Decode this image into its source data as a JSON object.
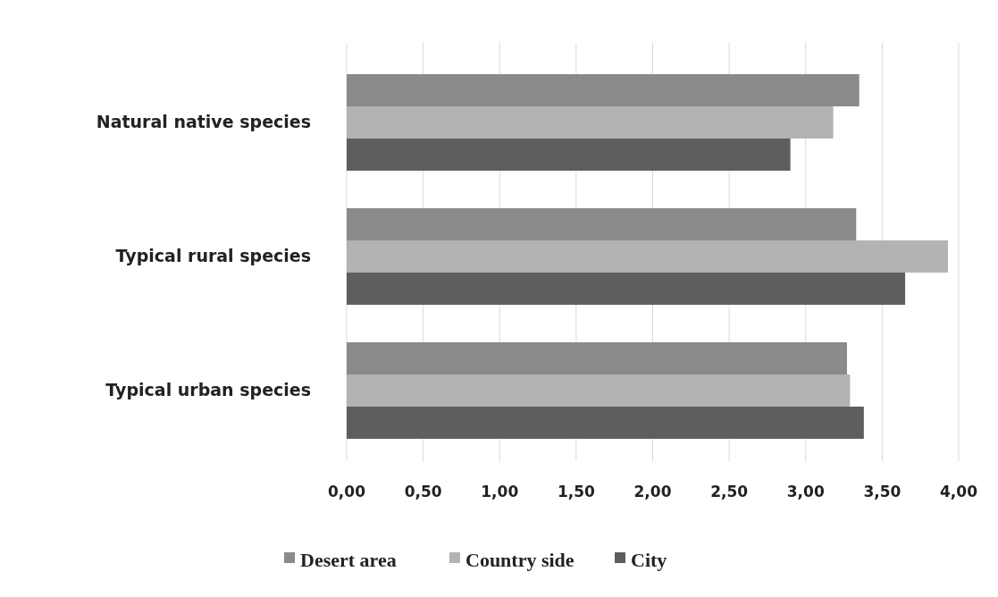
{
  "chart_data": {
    "type": "bar",
    "orientation": "horizontal",
    "categories": [
      "Natural native species",
      "Typical rural species",
      "Typical urban species"
    ],
    "series": [
      {
        "name": "Desert area",
        "color": "#8a8a8a",
        "values": [
          3.35,
          3.33,
          3.27
        ]
      },
      {
        "name": "Country side",
        "color": "#b3b3b3",
        "values": [
          3.18,
          3.93,
          3.29
        ]
      },
      {
        "name": "City",
        "color": "#5e5e5e",
        "values": [
          2.9,
          3.65,
          3.38
        ]
      }
    ],
    "xlim": [
      0,
      4
    ],
    "xticks": [
      {
        "value": 0,
        "label": "0,00"
      },
      {
        "value": 0.5,
        "label": "0,50"
      },
      {
        "value": 1,
        "label": "1,00"
      },
      {
        "value": 1.5,
        "label": "1,50"
      },
      {
        "value": 2,
        "label": "2,00"
      },
      {
        "value": 2.5,
        "label": "2,50"
      },
      {
        "value": 3,
        "label": "3,00"
      },
      {
        "value": 3.5,
        "label": "3,50"
      },
      {
        "value": 4,
        "label": "4,00"
      }
    ],
    "grid": "x",
    "legend": "bottom"
  }
}
